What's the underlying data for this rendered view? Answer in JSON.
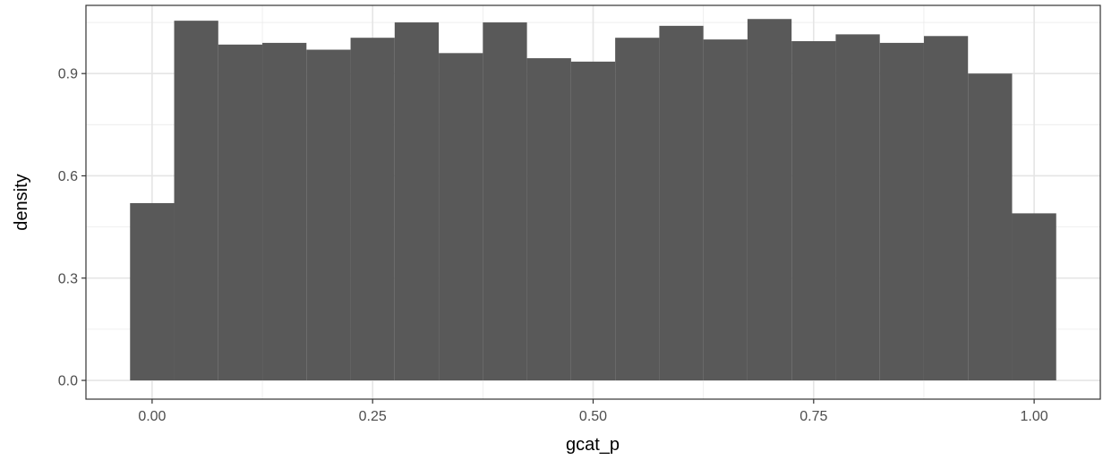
{
  "chart_data": {
    "type": "bar",
    "subtype": "histogram",
    "title": "",
    "xlabel": "gcat_p",
    "ylabel": "density",
    "xlim": [
      -0.075,
      1.075
    ],
    "ylim": [
      -0.055,
      1.1
    ],
    "x_ticks": [
      0.0,
      0.25,
      0.5,
      0.75,
      1.0
    ],
    "x_tick_labels": [
      "0.00",
      "0.25",
      "0.50",
      "0.75",
      "1.00"
    ],
    "y_ticks": [
      0.0,
      0.3,
      0.6,
      0.9
    ],
    "y_tick_labels": [
      "0.0",
      "0.3",
      "0.6",
      "0.9"
    ],
    "grid": true,
    "bar_color": "#595959",
    "bins": [
      {
        "x0": -0.025,
        "x1": 0.025,
        "value": 0.52
      },
      {
        "x0": 0.025,
        "x1": 0.075,
        "value": 1.055
      },
      {
        "x0": 0.075,
        "x1": 0.125,
        "value": 0.985
      },
      {
        "x0": 0.125,
        "x1": 0.175,
        "value": 0.99
      },
      {
        "x0": 0.175,
        "x1": 0.225,
        "value": 0.97
      },
      {
        "x0": 0.225,
        "x1": 0.275,
        "value": 1.005
      },
      {
        "x0": 0.275,
        "x1": 0.325,
        "value": 1.05
      },
      {
        "x0": 0.325,
        "x1": 0.375,
        "value": 0.96
      },
      {
        "x0": 0.375,
        "x1": 0.425,
        "value": 1.05
      },
      {
        "x0": 0.425,
        "x1": 0.475,
        "value": 0.945
      },
      {
        "x0": 0.475,
        "x1": 0.525,
        "value": 0.935
      },
      {
        "x0": 0.525,
        "x1": 0.575,
        "value": 1.005
      },
      {
        "x0": 0.575,
        "x1": 0.625,
        "value": 1.04
      },
      {
        "x0": 0.625,
        "x1": 0.675,
        "value": 1.0
      },
      {
        "x0": 0.675,
        "x1": 0.725,
        "value": 1.06
      },
      {
        "x0": 0.725,
        "x1": 0.775,
        "value": 0.995
      },
      {
        "x0": 0.775,
        "x1": 0.825,
        "value": 1.015
      },
      {
        "x0": 0.825,
        "x1": 0.875,
        "value": 0.99
      },
      {
        "x0": 0.875,
        "x1": 0.925,
        "value": 1.01
      },
      {
        "x0": 0.925,
        "x1": 0.975,
        "value": 0.9
      },
      {
        "x0": 0.975,
        "x1": 1.025,
        "value": 0.49
      }
    ]
  }
}
